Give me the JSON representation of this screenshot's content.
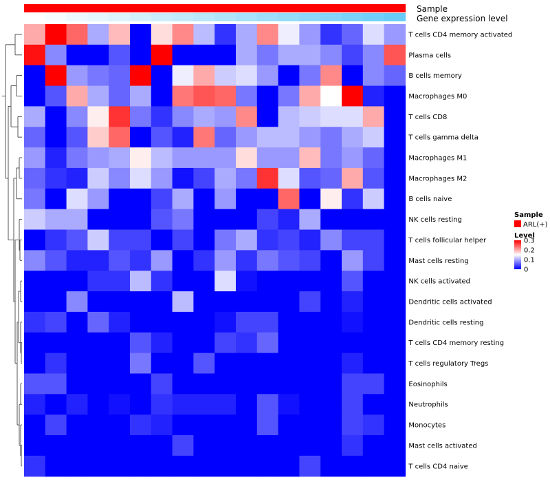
{
  "chart_data": {
    "type": "heatmap",
    "title": "",
    "annotations": {
      "sample_label": "Sample",
      "gene_label": "Gene expression level"
    },
    "legend": {
      "sample_title": "Sample",
      "sample_entry": "ARL(+)",
      "sample_color": "#FF0000",
      "level_title": "Level",
      "level_ticks": [
        "0.3",
        "0.2",
        "0.1",
        "0"
      ],
      "level_tick_values": [
        0.3,
        0.2,
        0.1,
        0
      ]
    },
    "colors": {
      "low": "#0000FF",
      "mid": "#FFFFFF",
      "high": "#FF0000",
      "gene_low": "#FFFFFF",
      "gene_high": "#4FC3F7"
    },
    "scale": {
      "min": 0,
      "mid": 0.15,
      "max": 0.3
    },
    "n_samples": 18,
    "rows": [
      "T cells CD4 memory activated",
      "Plasma cells",
      "B cells memory",
      "Macrophages M0",
      "T cells CD8",
      "T cells gamma delta",
      "Macrophages M1",
      "Macrophages M2",
      "B cells naive",
      "NK cells resting",
      "T cells follicular helper",
      "Mast cells resting",
      "NK cells activated",
      "Dendritic cells activated",
      "Dendritic cells resting",
      "T cells CD4 memory resting",
      "T cells regulatory  Tregs",
      "Eosinophils",
      "Neutrophils",
      "Monocytes",
      "Mast cells activated",
      "T cells CD4 naive"
    ],
    "values": [
      [
        0.2,
        0.3,
        0.24,
        0.1,
        0.19,
        0,
        0.17,
        0.22,
        0.11,
        0.03,
        0.1,
        0.22,
        0.14,
        0.09,
        0.03,
        0.06,
        0.13,
        0.09
      ],
      [
        0.29,
        0.08,
        0,
        0,
        0.05,
        0,
        0.3,
        0,
        0,
        0,
        0.1,
        0.07,
        0.1,
        0.1,
        0.08,
        0.04,
        0.08,
        0.25
      ],
      [
        0,
        0.3,
        0.09,
        0.07,
        0.06,
        0.3,
        0,
        0.14,
        0.2,
        0.12,
        0.13,
        0.09,
        0,
        0.07,
        0.22,
        0,
        0.08,
        0.06
      ],
      [
        0,
        0.05,
        0.2,
        0.1,
        0.06,
        0.1,
        0,
        0.23,
        0.25,
        0.24,
        0.07,
        0,
        0.07,
        0.2,
        0.15,
        0.3,
        0.02,
        0
      ],
      [
        0.1,
        0,
        0.08,
        0.16,
        0.27,
        0.07,
        0.03,
        0.08,
        0.1,
        0.09,
        0.22,
        0,
        0.11,
        0.12,
        0.13,
        0.13,
        0.2,
        0
      ],
      [
        0.06,
        0,
        0.05,
        0.18,
        0.24,
        0,
        0.05,
        0.02,
        0.23,
        0.06,
        0.09,
        0.11,
        0.11,
        0.09,
        0.07,
        0.1,
        0.12,
        0
      ],
      [
        0.09,
        0.02,
        0.07,
        0.09,
        0.1,
        0.16,
        0.11,
        0.09,
        0.09,
        0.09,
        0.17,
        0.09,
        0.09,
        0.19,
        0.07,
        0.09,
        0.06,
        0
      ],
      [
        0.06,
        0.03,
        0.02,
        0.12,
        0.08,
        0.13,
        0.09,
        0.01,
        0.04,
        0.1,
        0.07,
        0.27,
        0.13,
        0.05,
        0.06,
        0.2,
        0.05,
        0
      ],
      [
        0.07,
        0,
        0.13,
        0.09,
        0,
        0,
        0.04,
        0.1,
        0,
        0.09,
        0,
        0,
        0.24,
        0,
        0.16,
        0.03,
        0.12,
        0
      ],
      [
        0.12,
        0.1,
        0.1,
        0,
        0,
        0,
        0.05,
        0.07,
        0,
        0,
        0,
        0.04,
        0.02,
        0.1,
        0,
        0,
        0,
        0
      ],
      [
        0,
        0.03,
        0.05,
        0.12,
        0.04,
        0.04,
        0,
        0.04,
        0,
        0.07,
        0.1,
        0.03,
        0.04,
        0.02,
        0.08,
        0.04,
        0.04,
        0
      ],
      [
        0.08,
        0.05,
        0.02,
        0.02,
        0.05,
        0.03,
        0.09,
        0,
        0.03,
        0.09,
        0.03,
        0.07,
        0.05,
        0.04,
        0,
        0.09,
        0.04,
        0
      ],
      [
        0,
        0,
        0,
        0.03,
        0.03,
        0.11,
        0.03,
        0,
        0,
        0.13,
        0.01,
        0,
        0,
        0,
        0,
        0.05,
        0,
        0
      ],
      [
        0,
        0,
        0.08,
        0,
        0,
        0,
        0,
        0.11,
        0,
        0,
        0,
        0,
        0,
        0.04,
        0,
        0.02,
        0,
        0
      ],
      [
        0.03,
        0.04,
        0,
        0.06,
        0.02,
        0,
        0,
        0,
        0,
        0.01,
        0.04,
        0.04,
        0,
        0,
        0,
        0.01,
        0,
        0
      ],
      [
        0,
        0,
        0,
        0,
        0,
        0.05,
        0.02,
        0,
        0,
        0.04,
        0.03,
        0.06,
        0,
        0,
        0,
        0,
        0,
        0
      ],
      [
        0,
        0.03,
        0,
        0,
        0,
        0.07,
        0,
        0,
        0.05,
        0,
        0,
        0,
        0,
        0,
        0,
        0.02,
        0,
        0
      ],
      [
        0.05,
        0.05,
        0,
        0,
        0,
        0,
        0.04,
        0,
        0,
        0,
        0,
        0,
        0,
        0,
        0,
        0.04,
        0.04,
        0
      ],
      [
        0.02,
        0,
        0.02,
        0,
        0.01,
        0,
        0.03,
        0.02,
        0.02,
        0.02,
        0,
        0.05,
        0.01,
        0,
        0,
        0.04,
        0,
        0
      ],
      [
        0,
        0.04,
        0,
        0,
        0,
        0.03,
        0.02,
        0,
        0,
        0,
        0,
        0.05,
        0,
        0,
        0,
        0.04,
        0.03,
        0
      ],
      [
        0,
        0,
        0,
        0,
        0,
        0,
        0,
        0.04,
        0,
        0,
        0,
        0,
        0,
        0,
        0,
        0.03,
        0,
        0
      ],
      [
        0.03,
        0,
        0,
        0,
        0,
        0,
        0,
        0,
        0,
        0,
        0,
        0,
        0,
        0.04,
        0,
        0,
        0,
        0
      ]
    ],
    "gene_expression": [
      0.0,
      0.05,
      0.1,
      0.15,
      0.2,
      0.25,
      0.3,
      0.35,
      0.4,
      0.45,
      0.5,
      0.55,
      0.6,
      0.65,
      0.7,
      0.75,
      0.8,
      0.85
    ],
    "grid": false,
    "legend_position": "right"
  }
}
